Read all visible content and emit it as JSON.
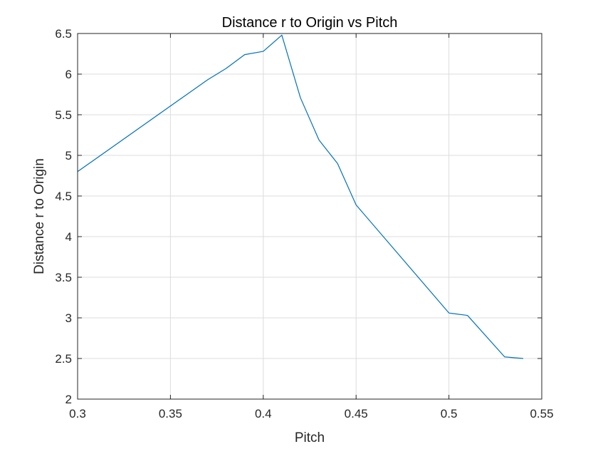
{
  "chart_data": {
    "type": "line",
    "title": "Distance r to Origin vs Pitch",
    "xlabel": "Pitch",
    "ylabel": "Distance r to Origin",
    "xlim": [
      0.3,
      0.55
    ],
    "ylim": [
      2,
      6.5
    ],
    "xticks": [
      "0.3",
      "0.35",
      "0.4",
      "0.45",
      "0.5",
      "0.55"
    ],
    "yticks": [
      "2",
      "2.5",
      "3",
      "3.5",
      "4",
      "4.5",
      "5",
      "5.5",
      "6",
      "6.5"
    ],
    "grid": true,
    "legend": "none",
    "series": [
      {
        "color": "#0072BD",
        "x": [
          0.3,
          0.37,
          0.38,
          0.39,
          0.4,
          0.41,
          0.42,
          0.43,
          0.44,
          0.45,
          0.5,
          0.51,
          0.53,
          0.54
        ],
        "y": [
          4.8,
          5.93,
          6.07,
          6.24,
          6.28,
          6.48,
          5.71,
          5.19,
          4.9,
          4.39,
          3.06,
          3.03,
          2.52,
          2.5
        ]
      }
    ]
  }
}
